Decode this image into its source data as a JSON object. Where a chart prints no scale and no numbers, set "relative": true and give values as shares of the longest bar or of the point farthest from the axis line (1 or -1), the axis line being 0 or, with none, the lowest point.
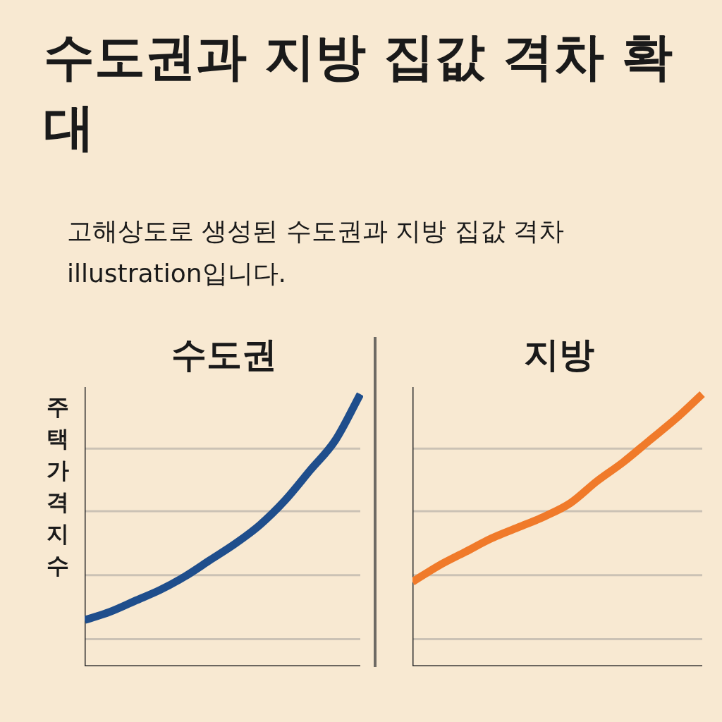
{
  "chart_data": [
    {
      "type": "line",
      "title": "수도권",
      "annotations": [
        "수도권과 지방 집값 격차 확대",
        "고해상도로 생성된 수도권과 지방 집값 격차 illustration입니다."
      ],
      "ylabel": "주택가격지수",
      "categories": [
        null,
        null,
        null,
        null,
        null,
        null,
        null,
        null,
        null,
        null,
        null,
        null
      ],
      "relative": true,
      "grid": "y",
      "tick_labels": false,
      "marker": "none",
      "line_style": "solid",
      "series": [
        {
          "color": "#1f4e8c",
          "values": [
            0.17,
            0.2,
            0.24,
            0.28,
            0.33,
            0.39,
            0.45,
            0.52,
            0.61,
            0.72,
            0.83,
            1
          ]
        }
      ]
    },
    {
      "type": "line",
      "title": "지방",
      "categories": [
        null,
        null,
        null,
        null,
        null,
        null,
        null,
        null,
        null,
        null,
        null,
        null
      ],
      "relative": true,
      "grid": "y",
      "tick_labels": false,
      "marker": "none",
      "line_style": "solid",
      "series": [
        {
          "color": "#f07a2a",
          "values": [
            0.31,
            0.37,
            0.42,
            0.47,
            0.51,
            0.55,
            0.6,
            0.68,
            0.75,
            0.83,
            0.91,
            1
          ]
        }
      ]
    }
  ]
}
